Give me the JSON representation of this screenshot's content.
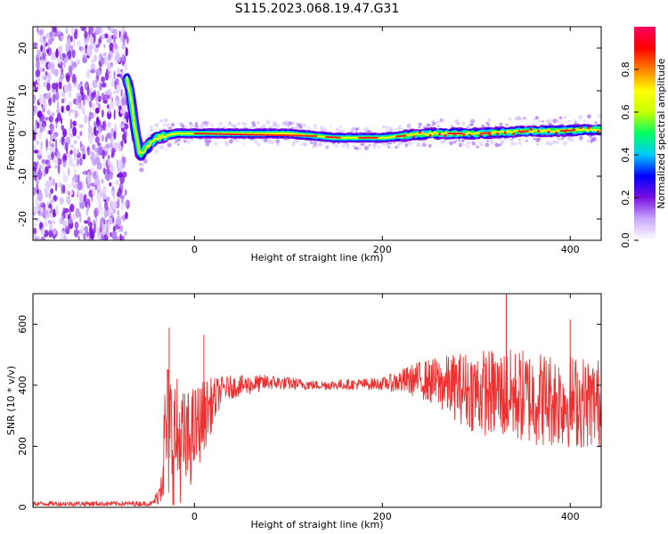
{
  "figure": {
    "title": "S115.2023.068.19.47.G31"
  },
  "chart_data": [
    {
      "type": "heatmap",
      "title": "S115.2023.068.19.47.G31",
      "xlabel": "Height of straight line (km)",
      "ylabel": "Frequency (Hz)",
      "xlim": [
        -172,
        433
      ],
      "ylim": [
        -25,
        25
      ],
      "x_ticks": [
        0,
        200,
        400
      ],
      "y_ticks": [
        -20,
        -10,
        0,
        10,
        20
      ],
      "colorbar": {
        "label": "Normalized spectral amplitude",
        "range": [
          0,
          1
        ],
        "ticks": [
          0.0,
          0.2,
          0.4,
          0.6,
          0.8
        ],
        "colors": [
          "#ffffff",
          "#c9a8ff",
          "#7a10e0",
          "#0000ff",
          "#00c8ff",
          "#00ff60",
          "#c8ff00",
          "#ffff00",
          "#ff8000",
          "#ff0000",
          "#ff0060"
        ]
      },
      "signal_track": {
        "noise_region_end_km": -75,
        "points": [
          {
            "x": -72,
            "y": 13
          },
          {
            "x": -68,
            "y": 9
          },
          {
            "x": -64,
            "y": 2
          },
          {
            "x": -58,
            "y": -5
          },
          {
            "x": -50,
            "y": -3
          },
          {
            "x": -40,
            "y": -1
          },
          {
            "x": -20,
            "y": 0
          },
          {
            "x": 0,
            "y": 0
          },
          {
            "x": 50,
            "y": 0
          },
          {
            "x": 100,
            "y": 0
          },
          {
            "x": 150,
            "y": -1
          },
          {
            "x": 200,
            "y": -1
          },
          {
            "x": 250,
            "y": 0
          },
          {
            "x": 300,
            "y": 0
          },
          {
            "x": 350,
            "y": 0.5
          },
          {
            "x": 400,
            "y": 0.7
          },
          {
            "x": 433,
            "y": 1
          }
        ]
      }
    },
    {
      "type": "line",
      "xlabel": "Height of straight line (km)",
      "ylabel": "SNR (10 * v/v)",
      "xlim": [
        -172,
        433
      ],
      "ylim": [
        0,
        700
      ],
      "x_ticks": [
        0,
        200,
        400
      ],
      "y_ticks": [
        0,
        200,
        400,
        600
      ],
      "line_color": "#ee3030",
      "envelope": [
        {
          "x": -172,
          "mean": 12,
          "spread": 8
        },
        {
          "x": -45,
          "mean": 12,
          "spread": 8
        },
        {
          "x": -38,
          "mean": 40,
          "spread": 30
        },
        {
          "x": -30,
          "mean": 250,
          "spread": 250
        },
        {
          "x": -10,
          "mean": 200,
          "spread": 180
        },
        {
          "x": 10,
          "mean": 300,
          "spread": 120
        },
        {
          "x": 30,
          "mean": 390,
          "spread": 40
        },
        {
          "x": 80,
          "mean": 410,
          "spread": 25
        },
        {
          "x": 130,
          "mean": 400,
          "spread": 15
        },
        {
          "x": 200,
          "mean": 405,
          "spread": 20
        },
        {
          "x": 240,
          "mean": 420,
          "spread": 60
        },
        {
          "x": 300,
          "mean": 380,
          "spread": 140
        },
        {
          "x": 360,
          "mean": 360,
          "spread": 160
        },
        {
          "x": 433,
          "mean": 340,
          "spread": 150
        }
      ],
      "peaks": [
        {
          "x": -27,
          "y": 588
        },
        {
          "x": 10,
          "y": 565
        },
        {
          "x": 332,
          "y": 700
        },
        {
          "x": 400,
          "y": 615
        }
      ]
    }
  ]
}
